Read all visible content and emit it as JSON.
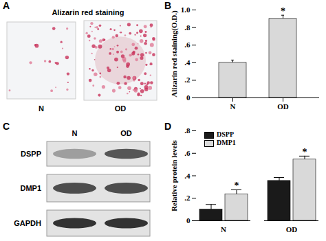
{
  "panel_A": {
    "label": "A",
    "title": "Alizarin red staining",
    "images": [
      "N",
      "OD"
    ]
  },
  "panel_C": {
    "label": "C",
    "lanes": [
      "N",
      "OD"
    ],
    "rows": [
      "DSPP",
      "DMP1",
      "GAPDH"
    ]
  },
  "chart_data": [
    {
      "label": "B",
      "type": "bar",
      "y_label": "Alizarin red staining(O.D.)",
      "categories": [
        "N",
        "OD"
      ],
      "values": [
        0.4,
        0.9
      ],
      "errors": [
        0.03,
        0.04
      ],
      "color": "#d9d9d9",
      "ylim": [
        0,
        1
      ],
      "yticks": [
        0,
        {
          "value": 0.2,
          "label": ".2"
        },
        {
          "value": 0.4,
          "label": ".4"
        },
        {
          "value": 0.6,
          "label": ".6"
        },
        {
          "value": 0.8,
          "label": ".8"
        },
        {
          "value": 1,
          "label": "1.0"
        }
      ],
      "annotations": [
        {
          "category": "OD",
          "text": "*"
        }
      ]
    },
    {
      "label": "D",
      "type": "bar",
      "y_label": "Relative protein levels",
      "categories": [
        "N",
        "OD"
      ],
      "series": [
        {
          "name": "DSPP",
          "color": "#1a1a1a",
          "values": [
            0.1,
            0.355
          ],
          "errors": [
            0.045,
            0.03
          ]
        },
        {
          "name": "DMP1",
          "color": "#d9d9d9",
          "values": [
            0.235,
            0.545
          ],
          "errors": [
            0.04,
            0.03
          ]
        }
      ],
      "ylim": [
        0,
        0.8
      ],
      "yticks": [
        0,
        {
          "value": 0.2,
          "label": ".2"
        },
        {
          "value": 0.4,
          "label": ".4"
        },
        {
          "value": 0.6,
          "label": ".6"
        },
        {
          "value": 0.8,
          "label": ".8"
        }
      ],
      "legend": "upper left",
      "annotations": [
        {
          "category": "N",
          "series": "DMP1",
          "text": "*"
        },
        {
          "category": "OD",
          "series": "DMP1",
          "text": "*"
        }
      ]
    }
  ]
}
